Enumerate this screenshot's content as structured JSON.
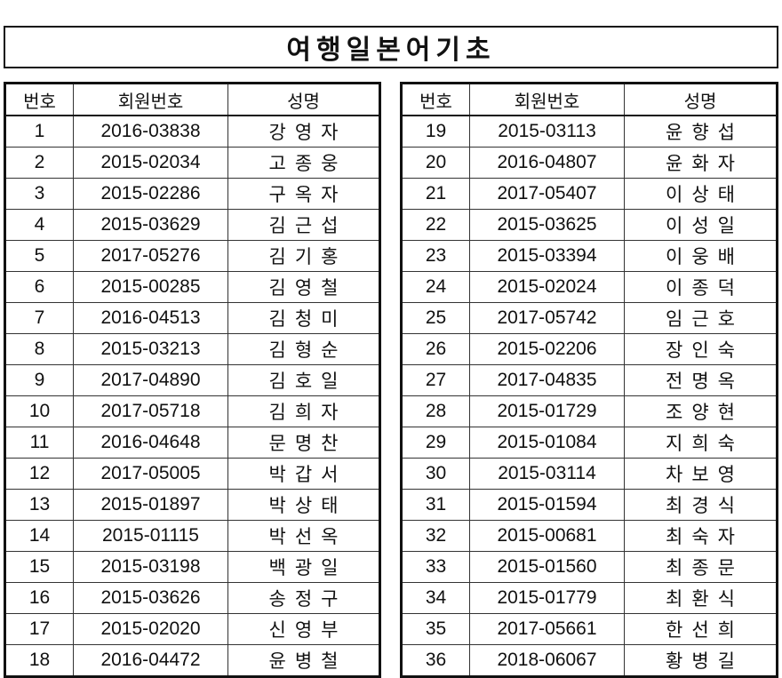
{
  "title": "여행일본어기초",
  "headers": [
    "번호",
    "회원번호",
    "성명"
  ],
  "left_rows": [
    [
      "1",
      "2016-03838",
      "강영자"
    ],
    [
      "2",
      "2015-02034",
      "고종웅"
    ],
    [
      "3",
      "2015-02286",
      "구옥자"
    ],
    [
      "4",
      "2015-03629",
      "김근섭"
    ],
    [
      "5",
      "2017-05276",
      "김기홍"
    ],
    [
      "6",
      "2015-00285",
      "김영철"
    ],
    [
      "7",
      "2016-04513",
      "김청미"
    ],
    [
      "8",
      "2015-03213",
      "김형순"
    ],
    [
      "9",
      "2017-04890",
      "김호일"
    ],
    [
      "10",
      "2017-05718",
      "김희자"
    ],
    [
      "11",
      "2016-04648",
      "문명찬"
    ],
    [
      "12",
      "2017-05005",
      "박갑서"
    ],
    [
      "13",
      "2015-01897",
      "박상태"
    ],
    [
      "14",
      "2015-01115",
      "박선옥"
    ],
    [
      "15",
      "2015-03198",
      "백광일"
    ],
    [
      "16",
      "2015-03626",
      "송정구"
    ],
    [
      "17",
      "2015-02020",
      "신영부"
    ],
    [
      "18",
      "2016-04472",
      "윤병철"
    ]
  ],
  "right_rows": [
    [
      "19",
      "2015-03113",
      "윤향섭"
    ],
    [
      "20",
      "2016-04807",
      "윤화자"
    ],
    [
      "21",
      "2017-05407",
      "이상태"
    ],
    [
      "22",
      "2015-03625",
      "이성일"
    ],
    [
      "23",
      "2015-03394",
      "이웅배"
    ],
    [
      "24",
      "2015-02024",
      "이종덕"
    ],
    [
      "25",
      "2017-05742",
      "임근호"
    ],
    [
      "26",
      "2015-02206",
      "장인숙"
    ],
    [
      "27",
      "2017-04835",
      "전명옥"
    ],
    [
      "28",
      "2015-01729",
      "조양현"
    ],
    [
      "29",
      "2015-01084",
      "지희숙"
    ],
    [
      "30",
      "2015-03114",
      "차보영"
    ],
    [
      "31",
      "2015-01594",
      "최경식"
    ],
    [
      "32",
      "2015-00681",
      "최숙자"
    ],
    [
      "33",
      "2015-01560",
      "최종문"
    ],
    [
      "34",
      "2015-01779",
      "최환식"
    ],
    [
      "35",
      "2017-05661",
      "한선희"
    ],
    [
      "36",
      "2018-06067",
      "황병길"
    ]
  ]
}
